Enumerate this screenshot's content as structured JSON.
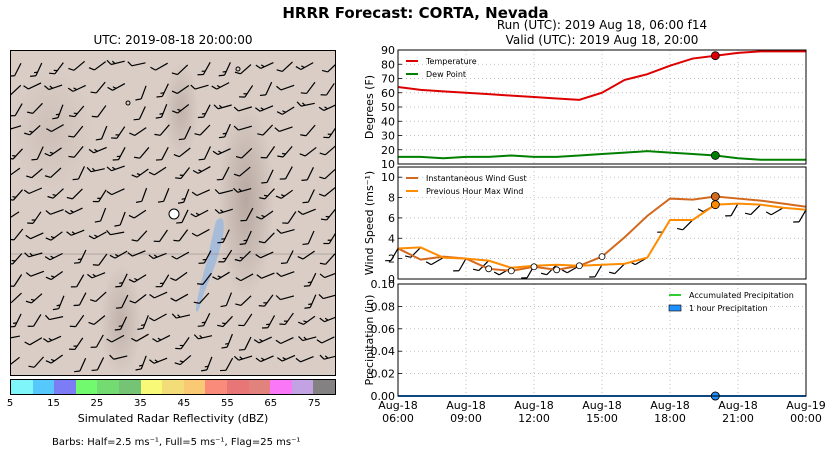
{
  "figure": {
    "title": "HRRR Forecast: CORTA, Nevada",
    "map_title": "UTC: 2019-08-18 20:00:00",
    "run_line": "Run (UTC): 2019 Aug 18, 06:00 f14",
    "valid_line": "Valid (UTC): 2019 Aug 18, 20:00"
  },
  "colorbar": {
    "label": "Simulated Radar Reflectivity (dBZ)",
    "ticks": [
      "5",
      "15",
      "25",
      "35",
      "45",
      "55",
      "65",
      "75"
    ],
    "colors": [
      "#7ff7fa",
      "#57c8fb",
      "#7d7cf7",
      "#72fa6f",
      "#74db72",
      "#75c476",
      "#f8fa77",
      "#f2dd79",
      "#fac973",
      "#fa8a7a",
      "#e87677",
      "#e1827c",
      "#fa78f8",
      "#c3a2e3",
      "#838181"
    ]
  },
  "barbs_note": "Barbs: Half=2.5 ms⁻¹, Full=5 ms⁻¹, Flag=25 ms⁻¹",
  "chart_data": [
    {
      "type": "line",
      "ylabel": "Degrees (F)",
      "ylim": [
        10,
        90
      ],
      "yticks": [
        "10",
        "20",
        "30",
        "40",
        "50",
        "60",
        "70",
        "80",
        "90"
      ],
      "x": [
        6,
        7,
        8,
        9,
        10,
        11,
        12,
        13,
        14,
        15,
        16,
        17,
        18,
        19,
        20,
        21,
        22,
        23,
        24
      ],
      "series": [
        {
          "name": "Temperature",
          "color": "#dd0000",
          "values": [
            64,
            62,
            61,
            60,
            59,
            58,
            57,
            56,
            55,
            60,
            69,
            73,
            79,
            84,
            86,
            88,
            89,
            89,
            89
          ]
        },
        {
          "name": "Dew Point",
          "color": "#008000",
          "values": [
            15,
            15,
            14,
            15,
            15,
            16,
            15,
            15,
            16,
            17,
            18,
            19,
            18,
            17,
            16,
            14,
            13,
            13,
            13
          ]
        }
      ],
      "marker_x": 20,
      "legend": "top-left",
      "grid": true
    },
    {
      "type": "line",
      "ylabel": "Wind Speed (ms⁻¹)",
      "ylim": [
        0,
        11
      ],
      "yticks": [
        "0",
        "2",
        "4",
        "6",
        "8",
        "10"
      ],
      "x": [
        6,
        7,
        8,
        9,
        10,
        11,
        12,
        13,
        14,
        15,
        16,
        17,
        18,
        19,
        20,
        21,
        22,
        23,
        24
      ],
      "series": [
        {
          "name": "Instantaneous Wind Gust",
          "color": "#d2691e",
          "values": [
            3.0,
            1.9,
            2.2,
            2.0,
            1.0,
            0.8,
            1.2,
            0.9,
            1.3,
            2.2,
            4.1,
            6.2,
            7.9,
            7.8,
            8.1,
            7.9,
            7.7,
            7.4,
            7.1
          ]
        },
        {
          "name": "Previous Hour Max Wind",
          "color": "#ff8c00",
          "values": [
            3.0,
            3.1,
            2.1,
            2.0,
            1.8,
            1.1,
            1.3,
            1.4,
            1.3,
            1.4,
            1.5,
            2.1,
            5.8,
            5.8,
            7.3,
            7.4,
            7.3,
            7.0,
            6.8
          ]
        }
      ],
      "marker_x": 20,
      "legend": "top-left",
      "grid": true
    },
    {
      "type": "line",
      "ylabel": "Precipitation (in)",
      "ylim": [
        0,
        0.1
      ],
      "yticks": [
        "0.00",
        "0.02",
        "0.04",
        "0.06",
        "0.08",
        "0.10"
      ],
      "x": [
        6,
        7,
        8,
        9,
        10,
        11,
        12,
        13,
        14,
        15,
        16,
        17,
        18,
        19,
        20,
        21,
        22,
        23,
        24
      ],
      "series": [
        {
          "name": "Accumulated Precipitation",
          "color": "#32cd32",
          "values": [
            0,
            0,
            0,
            0,
            0,
            0,
            0,
            0,
            0,
            0,
            0,
            0,
            0,
            0,
            0,
            0,
            0,
            0,
            0
          ]
        },
        {
          "name": "1 hour Precipitation",
          "color": "#1e90ff",
          "values": [
            0,
            0,
            0,
            0,
            0,
            0,
            0,
            0,
            0,
            0,
            0,
            0,
            0,
            0,
            0,
            0,
            0,
            0,
            0
          ]
        }
      ],
      "marker_x": 20,
      "legend": "top-right",
      "grid": true
    }
  ],
  "xaxis": {
    "tick_hours": [
      6,
      9,
      12,
      15,
      18,
      21,
      24
    ],
    "tick_line1": [
      "Aug-18",
      "Aug-18",
      "Aug-18",
      "Aug-18",
      "Aug-18",
      "Aug-18",
      "Aug-19"
    ],
    "tick_line2": [
      "06:00",
      "09:00",
      "12:00",
      "15:00",
      "18:00",
      "21:00",
      "00:00"
    ]
  }
}
